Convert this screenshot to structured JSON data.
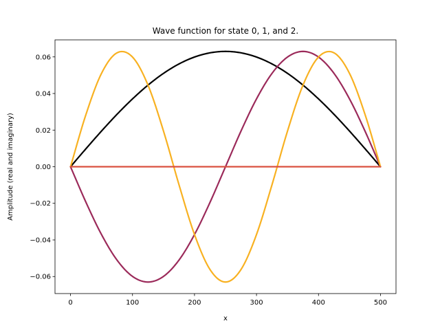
{
  "chart_data": {
    "type": "line",
    "title": "Wave function for state 0, 1, and 2.",
    "xlabel": "x",
    "ylabel": "Amplitude (real and imaginary)",
    "xlim": [
      -25,
      525
    ],
    "ylim": [
      -0.0693,
      0.0693
    ],
    "xticks": [
      0,
      100,
      200,
      300,
      400,
      500
    ],
    "xtick_labels": [
      "0",
      "100",
      "200",
      "300",
      "400",
      "500"
    ],
    "yticks": [
      -0.06,
      -0.04,
      -0.02,
      0.0,
      0.02,
      0.04,
      0.06
    ],
    "ytick_labels": [
      "−0.06",
      "−0.04",
      "−0.02",
      "0.00",
      "0.02",
      "0.04",
      "0.06"
    ],
    "grid": false,
    "x": [
      0,
      25,
      50,
      75,
      100,
      125,
      150,
      175,
      200,
      225,
      250,
      275,
      300,
      325,
      350,
      375,
      400,
      425,
      450,
      475,
      500
    ],
    "series": [
      {
        "color": "#000000",
        "values": [
          0.0,
          0.00986,
          0.01948,
          0.02862,
          0.03705,
          0.04458,
          0.051,
          0.05616,
          0.05992,
          0.06222,
          0.063,
          0.06222,
          0.05992,
          0.05616,
          0.051,
          0.04458,
          0.03705,
          0.02862,
          0.01948,
          0.00986,
          0.0
        ]
      },
      {
        "color": "#9b2a5a",
        "values": [
          0.0,
          -0.01948,
          -0.03705,
          -0.051,
          -0.05992,
          -0.063,
          -0.05992,
          -0.051,
          -0.03705,
          -0.01948,
          0.0,
          0.01948,
          0.03705,
          0.051,
          0.05992,
          0.063,
          0.05992,
          0.051,
          0.03705,
          0.01948,
          0.0
        ]
      },
      {
        "color": "#f8b121",
        "values": [
          0.0,
          0.02862,
          0.051,
          0.06222,
          0.05992,
          0.04458,
          0.01948,
          -0.00986,
          -0.03705,
          -0.05616,
          -0.063,
          -0.05616,
          -0.03705,
          -0.00986,
          0.01948,
          0.04458,
          0.05992,
          0.06222,
          0.051,
          0.02862,
          0.0
        ]
      },
      {
        "color": "#d9503f",
        "values": [
          0.0,
          0.0,
          0.0,
          0.0,
          0.0,
          0.0,
          0.0,
          0.0,
          0.0,
          0.0,
          0.0,
          0.0,
          0.0,
          0.0,
          0.0,
          0.0,
          0.0,
          0.0,
          0.0,
          0.0,
          0.0
        ]
      }
    ]
  }
}
